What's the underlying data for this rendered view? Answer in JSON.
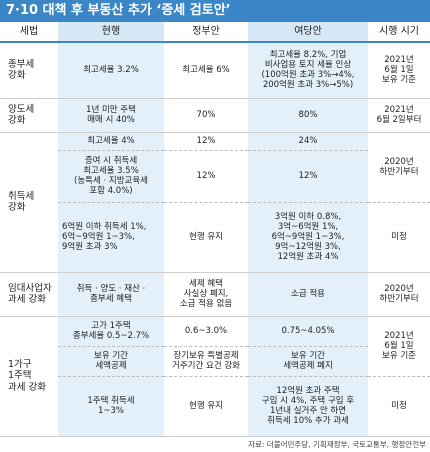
{
  "title": "7·10 대책 후 부동산 추가 ‘증세 검토안’",
  "headers": {
    "category": "세법",
    "current": "현행",
    "government": "정부안",
    "ruling_party": "여당안",
    "effective": "시행 시기"
  },
  "rows": {
    "comprehensive": {
      "label": "종부세\n강화",
      "current": "최고세율 3.2%",
      "government": "최고세율 6%",
      "ruling_party": "최고세율 8.2%, 기업\n비사업용 토지 세율 인상\n(100억원 초과 3%→4%,\n200억원 초과 3%→5%)",
      "effective": "2021년\n6월 1일\n보유 기준"
    },
    "transfer": {
      "label": "양도세\n강화",
      "current": "1년 미만 주택\n매매 시 40%",
      "government": "70%",
      "ruling_party": "80%",
      "effective": "2021년\n6월 2일부터"
    },
    "acquisition": {
      "label": "취득세\n강화",
      "r1": {
        "current": "최고세율 4%",
        "government": "12%",
        "ruling_party": "24%"
      },
      "r2": {
        "current": "증여 시 취득세\n최고세율 3.5%\n(농특세 · 지방교육세\n포함 4.0%)",
        "government": "12%",
        "ruling_party": "12%",
        "effective": "2020년\n하반기부터"
      },
      "r3": {
        "current": "6억원 이하 취득세 1%,\n6억~9억원 1~3%,\n9억원 초과 3%",
        "government": "현행 유지",
        "ruling_party": "3억원 이하 0.8%,\n3억~6억원 1%,\n6억~9억원 1~3%,\n9억~12억원 3%,\n12억원 초과 4%",
        "effective": "미정"
      }
    },
    "rental": {
      "label": "임대사업자\n과세 강화",
      "current": "취득 · 양도 · 재산 ·\n종부세 혜택",
      "government": "세제 혜택\n사실상 폐지,\n소급 적용 없음",
      "ruling_party": "소급 적용",
      "effective": "2020년\n하반기부터"
    },
    "one_house": {
      "label": "1가구\n1주택\n과세 강화",
      "r1": {
        "current": "고가 1주택\n종부세율 0.5~2.7%",
        "government": "0.6~3.0%",
        "ruling_party": "0.75~4.05%",
        "effective": "2021년\n6월 1일\n보유 기준"
      },
      "r2": {
        "current": "보유 기간\n세액공제",
        "government": "장기보유 특별공제\n거주기간 요건 강화",
        "ruling_party": "보유 기간\n세액공제 폐지"
      },
      "r3": {
        "current": "1주택 취득세\n1~3%",
        "government": "현행 유지",
        "ruling_party": "12억원 초과 주택\n구입 시 4%, 주택 구입 후\n1년내 실거주 안 하면\n취득세 10% 추가 과세",
        "effective": "미정"
      }
    }
  },
  "source": "자료: 더불어민주당, 기획재정부, 국토교통부, 행정안전부"
}
